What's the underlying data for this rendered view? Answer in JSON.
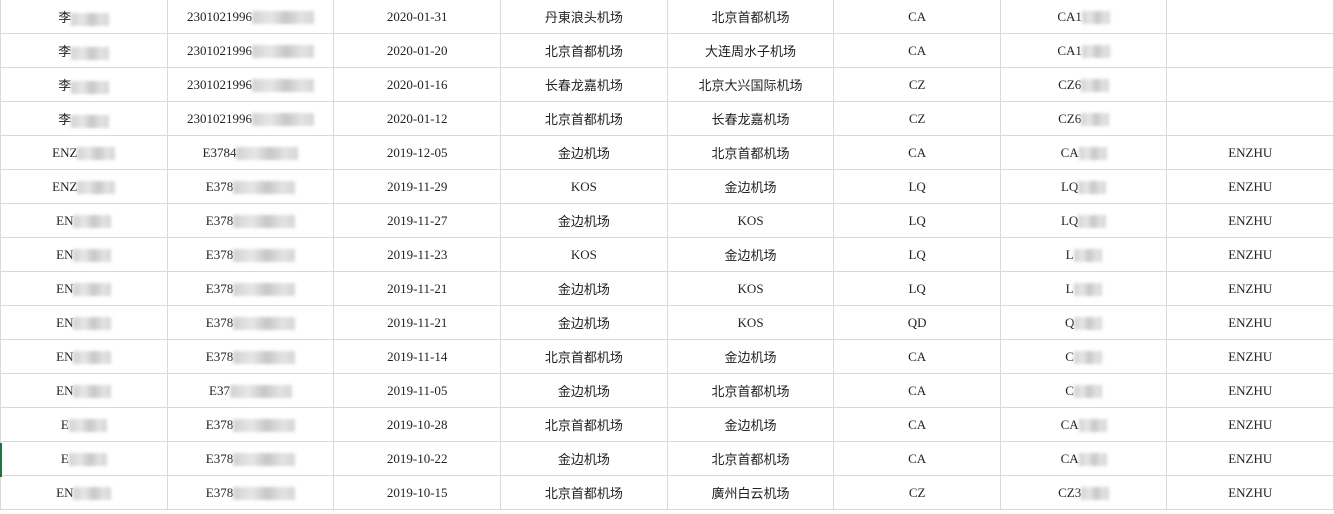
{
  "rows": [
    {
      "name": "李",
      "id": "2301021996",
      "date": "2020-01-31",
      "from": "丹東浪头机场",
      "to": "北京首都机场",
      "airline": "CA",
      "flight": "CA1",
      "pax": ""
    },
    {
      "name": "李",
      "id": "2301021996",
      "date": "2020-01-20",
      "from": "北京首都机场",
      "to": "大连周水子机场",
      "airline": "CA",
      "flight": "CA1",
      "pax": ""
    },
    {
      "name": "李",
      "id": "2301021996",
      "date": "2020-01-16",
      "from": "长春龙嘉机场",
      "to": "北京大兴国际机场",
      "airline": "CZ",
      "flight": "CZ6",
      "pax": ""
    },
    {
      "name": "李",
      "id": "2301021996",
      "date": "2020-01-12",
      "from": "北京首都机场",
      "to": "长春龙嘉机场",
      "airline": "CZ",
      "flight": "CZ6",
      "pax": ""
    },
    {
      "name": "ENZ",
      "id": "E3784",
      "date": "2019-12-05",
      "from": "金边机场",
      "to": "北京首都机场",
      "airline": "CA",
      "flight": "CA",
      "pax": "ENZHU"
    },
    {
      "name": "ENZ",
      "id": "E378",
      "date": "2019-11-29",
      "from": "KOS",
      "to": "金边机场",
      "airline": "LQ",
      "flight": "LQ",
      "pax": "ENZHU"
    },
    {
      "name": "EN",
      "id": "E378",
      "date": "2019-11-27",
      "from": "金边机场",
      "to": "KOS",
      "airline": "LQ",
      "flight": "LQ",
      "pax": "ENZHU"
    },
    {
      "name": "EN",
      "id": "E378",
      "date": "2019-11-23",
      "from": "KOS",
      "to": "金边机场",
      "airline": "LQ",
      "flight": "L",
      "pax": "ENZHU"
    },
    {
      "name": "EN",
      "id": "E378",
      "date": "2019-11-21",
      "from": "金边机场",
      "to": "KOS",
      "airline": "LQ",
      "flight": "L",
      "pax": "ENZHU"
    },
    {
      "name": "EN",
      "id": "E378",
      "date": "2019-11-21",
      "from": "金边机场",
      "to": "KOS",
      "airline": "QD",
      "flight": "Q",
      "pax": "ENZHU"
    },
    {
      "name": "EN",
      "id": "E378",
      "date": "2019-11-14",
      "from": "北京首都机场",
      "to": "金边机场",
      "airline": "CA",
      "flight": "C",
      "pax": "ENZHU"
    },
    {
      "name": "EN",
      "id": "E37",
      "date": "2019-11-05",
      "from": "金边机场",
      "to": "北京首都机场",
      "airline": "CA",
      "flight": "C",
      "pax": "ENZHU"
    },
    {
      "name": "E",
      "id": "E378",
      "date": "2019-10-28",
      "from": "北京首都机场",
      "to": "金边机场",
      "airline": "CA",
      "flight": "CA",
      "pax": "ENZHU"
    },
    {
      "name": "E",
      "id": "E378",
      "date": "2019-10-22",
      "from": "金边机场",
      "to": "北京首都机场",
      "airline": "CA",
      "flight": "CA",
      "pax": "ENZHU"
    },
    {
      "name": "EN",
      "id": "E378",
      "date": "2019-10-15",
      "from": "北京首都机场",
      "to": "廣州白云机场",
      "airline": "CZ",
      "flight": "CZ3",
      "pax": "ENZHU"
    }
  ]
}
